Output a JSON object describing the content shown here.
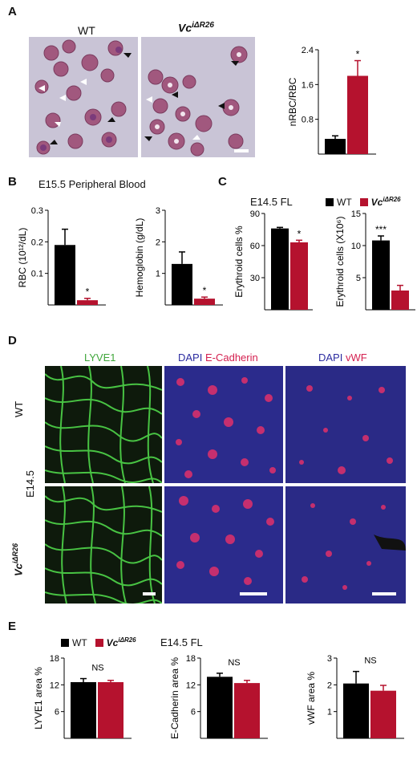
{
  "panels": {
    "a": {
      "letter": "A",
      "wt_label": "WT",
      "ko_label": "Vc",
      "ko_sup": "iΔR26"
    },
    "b": {
      "letter": "B",
      "title": "E15.5 Peripheral Blood"
    },
    "c": {
      "letter": "C",
      "title": "E14.5 FL"
    },
    "d": {
      "letter": "D",
      "col1": "LYVE1",
      "col2a": "DAPI",
      "col2b": "E-Cadherin",
      "col3a": "DAPI",
      "col3b": "vWF",
      "row1": "WT",
      "row_mid": "E14.5",
      "row2": "Vc",
      "row2_sup": "iΔR26"
    },
    "e": {
      "letter": "E",
      "title": "E14.5 FL"
    }
  },
  "legend": {
    "wt": "WT",
    "ko": "Vc",
    "ko_sup": "iΔR26"
  },
  "colors": {
    "wt": "#000000",
    "ko": "#b5122e",
    "lyve_green": "#4fd64a",
    "dapi_blue": "#3434a8",
    "stain_red": "#e0306a"
  },
  "chart_data": [
    {
      "id": "a-nrbc",
      "type": "bar",
      "categories": [
        "WT",
        "Vc iΔR26"
      ],
      "values": [
        0.35,
        1.8
      ],
      "errors": [
        0.07,
        0.35
      ],
      "ylabel": "nRBC/RBC",
      "ylim": [
        0,
        2.4
      ],
      "yticks": [
        0.8,
        1.6,
        2.4
      ],
      "sig": [
        "",
        "*"
      ]
    },
    {
      "id": "b-rbc",
      "type": "bar",
      "categories": [
        "WT",
        "Vc iΔR26"
      ],
      "values": [
        0.19,
        0.015
      ],
      "errors": [
        0.05,
        0.006
      ],
      "ylabel": "RBC (10¹²/dL)",
      "ylim": [
        0,
        0.3
      ],
      "yticks": [
        0.1,
        0.2,
        0.3
      ],
      "sig": [
        "",
        "*"
      ]
    },
    {
      "id": "b-hgb",
      "type": "bar",
      "categories": [
        "WT",
        "Vc iΔR26"
      ],
      "values": [
        1.3,
        0.2
      ],
      "errors": [
        0.38,
        0.05
      ],
      "ylabel": "Hemoglobin (g/dL)",
      "ylim": [
        0,
        3
      ],
      "yticks": [
        1,
        2,
        3
      ],
      "sig": [
        "",
        "*"
      ]
    },
    {
      "id": "c-pct",
      "type": "bar",
      "categories": [
        "WT",
        "Vc iΔR26"
      ],
      "values": [
        76,
        63
      ],
      "errors": [
        1,
        2
      ],
      "ylabel": "Erythroid cells %",
      "ylim": [
        0,
        90
      ],
      "yticks": [
        30,
        60,
        90
      ],
      "sig": [
        "",
        "*"
      ]
    },
    {
      "id": "c-count",
      "type": "bar",
      "categories": [
        "WT",
        "Vc iΔR26"
      ],
      "values": [
        10.8,
        3.0
      ],
      "errors": [
        0.7,
        0.8
      ],
      "ylabel": "Erythroid cells (X10⁶)",
      "ylim": [
        0,
        15
      ],
      "yticks": [
        5,
        10,
        15
      ],
      "sig": [
        "***",
        ""
      ]
    },
    {
      "id": "e-lyve",
      "type": "bar",
      "categories": [
        "WT",
        "Vc iΔR26"
      ],
      "values": [
        12.6,
        12.6
      ],
      "errors": [
        0.8,
        0.4
      ],
      "ylabel": "LYVE1 area %",
      "ylim": [
        0,
        18
      ],
      "yticks": [
        6,
        12,
        18
      ],
      "annotation": "NS"
    },
    {
      "id": "e-ecad",
      "type": "bar",
      "categories": [
        "WT",
        "Vc iΔR26"
      ],
      "values": [
        13.8,
        12.4
      ],
      "errors": [
        0.8,
        0.6
      ],
      "ylabel": "E-Cadherin area %",
      "ylim": [
        0,
        18
      ],
      "yticks": [
        6,
        12,
        18
      ],
      "annotation": "NS"
    },
    {
      "id": "e-vwf",
      "type": "bar",
      "categories": [
        "WT",
        "Vc iΔR26"
      ],
      "values": [
        2.05,
        1.78
      ],
      "errors": [
        0.45,
        0.2
      ],
      "ylabel": "vWF area %",
      "ylim": [
        0,
        3
      ],
      "yticks": [
        1,
        2,
        3
      ],
      "annotation": "NS"
    }
  ]
}
